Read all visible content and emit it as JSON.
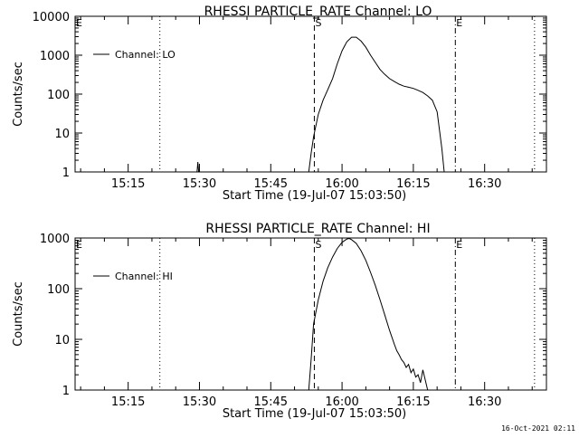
{
  "footer_timestamp": "16-Oct-2021 02:11",
  "chart_data": [
    {
      "type": "line",
      "title": "RHESSI PARTICLE_RATE Channel: LO",
      "xlabel": "Start Time (19-Jul-07 15:03:50)",
      "ylabel": "Counts/sec",
      "yscale": "log",
      "xlim": [
        "15:03:50",
        "16:43:00"
      ],
      "ylim": [
        1,
        10000
      ],
      "x_tick_labels": [
        "15:15",
        "15:30",
        "15:45",
        "16:00",
        "16:15",
        "16:30"
      ],
      "y_tick_labels": [
        "1",
        "10",
        "100",
        "1000",
        "10000"
      ],
      "legend": {
        "placement": "top-left",
        "entries": [
          "Channel: LO"
        ]
      },
      "markers": [
        {
          "label": "E",
          "time": "15:03:50",
          "style": "dotted"
        },
        {
          "label": "",
          "time": "15:21:40",
          "style": "dotted"
        },
        {
          "label": "S",
          "time": "15:54:10",
          "style": "dashed"
        },
        {
          "label": "E",
          "time": "16:23:50",
          "style": "dash-dot"
        },
        {
          "label": "",
          "time": "16:40:30",
          "style": "dotted"
        }
      ],
      "series": [
        {
          "name": "Channel: LO",
          "x": [
            "15:29:30",
            "15:29:40",
            "15:29:50",
            "15:53:00",
            "15:53:30",
            "15:54:00",
            "15:55:00",
            "15:56:00",
            "15:57:00",
            "15:58:00",
            "15:59:00",
            "16:00:00",
            "16:01:00",
            "16:02:00",
            "16:03:00",
            "16:04:00",
            "16:05:00",
            "16:06:00",
            "16:07:00",
            "16:08:00",
            "16:09:00",
            "16:10:00",
            "16:11:00",
            "16:12:00",
            "16:13:00",
            "16:14:00",
            "16:15:00",
            "16:16:00",
            "16:17:00",
            "16:18:00",
            "16:19:00",
            "16:20:00",
            "16:21:00",
            "16:21:30"
          ],
          "y": [
            1,
            1.8,
            1,
            1,
            3,
            8,
            30,
            70,
            130,
            250,
            600,
            1300,
            2200,
            2900,
            2900,
            2300,
            1600,
            1000,
            650,
            430,
            320,
            250,
            210,
            180,
            160,
            150,
            140,
            125,
            110,
            90,
            70,
            35,
            4,
            1
          ]
        }
      ]
    },
    {
      "type": "line",
      "title": "RHESSI PARTICLE_RATE Channel: HI",
      "xlabel": "Start Time (19-Jul-07 15:03:50)",
      "ylabel": "Counts/sec",
      "yscale": "log",
      "xlim": [
        "15:03:50",
        "16:43:00"
      ],
      "ylim": [
        1,
        1000
      ],
      "x_tick_labels": [
        "15:15",
        "15:30",
        "15:45",
        "16:00",
        "16:15",
        "16:30"
      ],
      "y_tick_labels": [
        "1",
        "10",
        "100",
        "1000"
      ],
      "legend": {
        "placement": "top-left",
        "entries": [
          "Channel: HI"
        ]
      },
      "markers": [
        {
          "label": "E",
          "time": "15:03:50",
          "style": "dotted"
        },
        {
          "label": "",
          "time": "15:21:40",
          "style": "dotted"
        },
        {
          "label": "S",
          "time": "15:54:10",
          "style": "dashed"
        },
        {
          "label": "E",
          "time": "16:23:50",
          "style": "dash-dot"
        },
        {
          "label": "",
          "time": "16:40:30",
          "style": "dotted"
        }
      ],
      "series": [
        {
          "name": "Channel: HI",
          "x": [
            "15:53:00",
            "15:53:30",
            "15:54:00",
            "15:55:00",
            "15:56:00",
            "15:57:00",
            "15:58:00",
            "15:59:00",
            "16:00:00",
            "16:01:00",
            "16:01:30",
            "16:02:00",
            "16:03:00",
            "16:04:00",
            "16:05:00",
            "16:06:00",
            "16:07:00",
            "16:08:00",
            "16:09:00",
            "16:10:00",
            "16:11:00",
            "16:11:30",
            "16:12:00",
            "16:12:30",
            "16:13:00",
            "16:13:30",
            "16:14:00",
            "16:14:30",
            "16:15:00",
            "16:15:30",
            "16:16:00",
            "16:16:30",
            "16:17:00",
            "16:17:30",
            "16:18:00"
          ],
          "y": [
            1,
            4,
            20,
            60,
            140,
            260,
            420,
            620,
            820,
            950,
            980,
            930,
            780,
            560,
            360,
            210,
            115,
            60,
            30,
            15,
            8,
            6,
            5,
            4,
            3.5,
            2.8,
            3.2,
            2.2,
            2.6,
            1.8,
            2.0,
            1.4,
            2.5,
            1.6,
            1
          ]
        }
      ]
    }
  ]
}
